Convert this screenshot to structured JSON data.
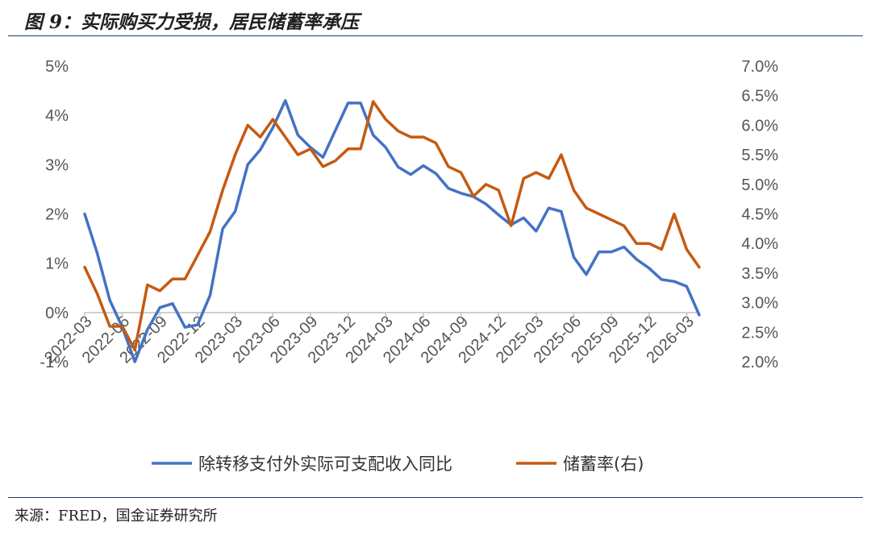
{
  "title": "图 9：实际购买力受损，居民储蓄率承压",
  "source": "来源：FRED，国金证券研究所",
  "colors": {
    "income": "#4472C4",
    "saving": "#C55A11"
  },
  "chart_data": {
    "type": "line",
    "x_tick_labels": [
      "2022-03",
      "2022-06",
      "2022-09",
      "2022-12",
      "2023-03",
      "2023-06",
      "2023-09",
      "2023-12",
      "2024-03",
      "2024-06",
      "2024-09",
      "2024-12",
      "2025-03",
      "2025-06",
      "2025-09",
      "2025-12",
      "2026-03"
    ],
    "y_left": {
      "range": [
        -1,
        5
      ],
      "tick_labels": [
        "-1%",
        "0%",
        "1%",
        "2%",
        "3%",
        "4%",
        "5%"
      ]
    },
    "y_right": {
      "range": [
        2.0,
        7.0
      ],
      "tick_labels": [
        "2.0%",
        "2.5%",
        "3.0%",
        "3.5%",
        "4.0%",
        "4.5%",
        "5.0%",
        "5.5%",
        "6.0%",
        "6.5%",
        "7.0%"
      ]
    },
    "x_start": "2022-03",
    "series": [
      {
        "name": "除转移支付外实际可支配收入同比",
        "axis": "left",
        "values": [
          2.0,
          1.2,
          0.25,
          -0.3,
          -1.0,
          -0.35,
          0.1,
          0.18,
          -0.3,
          -0.25,
          0.35,
          1.7,
          2.05,
          3.0,
          3.3,
          3.75,
          4.3,
          3.6,
          3.35,
          3.15,
          3.7,
          4.25,
          4.25,
          3.6,
          3.35,
          2.95,
          2.8,
          2.98,
          2.82,
          2.52,
          2.42,
          2.35,
          2.2,
          1.98,
          1.78,
          1.92,
          1.65,
          2.12,
          2.05,
          1.12,
          0.77,
          1.23,
          1.23,
          1.33,
          1.08,
          0.9,
          0.67,
          0.63,
          0.53,
          -0.05
        ]
      },
      {
        "name": "储蓄率(右)",
        "axis": "right",
        "values": [
          3.6,
          3.15,
          2.6,
          2.6,
          2.2,
          3.3,
          3.2,
          3.4,
          3.4,
          3.8,
          4.2,
          4.9,
          5.5,
          6.0,
          5.8,
          6.1,
          5.8,
          5.5,
          5.6,
          5.3,
          5.4,
          5.6,
          5.6,
          6.4,
          6.1,
          5.9,
          5.8,
          5.8,
          5.7,
          5.3,
          5.2,
          4.8,
          5.0,
          4.9,
          4.3,
          5.1,
          5.2,
          5.1,
          5.5,
          4.9,
          4.6,
          4.5,
          4.4,
          4.3,
          4.0,
          4.0,
          3.9,
          4.5,
          3.9,
          3.6
        ]
      }
    ],
    "legend": "bottom",
    "grid": false
  }
}
